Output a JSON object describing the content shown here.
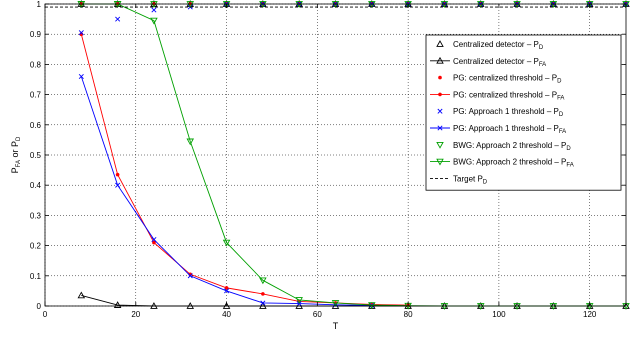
{
  "chart_data": {
    "type": "line",
    "xlabel": "T",
    "ylabel": {
      "main": "P",
      "sub1": "FA",
      "mid": " or P",
      "sub2": "D"
    },
    "xlim": [
      0,
      128
    ],
    "ylim": [
      0,
      1
    ],
    "xticks": [
      "0",
      "20",
      "40",
      "60",
      "80",
      "100",
      "120"
    ],
    "xtick_values": [
      0,
      20,
      40,
      60,
      80,
      100,
      120
    ],
    "yticks": [
      "0",
      "0.1",
      "0.2",
      "0.3",
      "0.4",
      "0.5",
      "0.6",
      "0.7",
      "0.8",
      "0.9",
      "1"
    ],
    "ytick_values": [
      0,
      0.1,
      0.2,
      0.3,
      0.4,
      0.5,
      0.6,
      0.7,
      0.8,
      0.9,
      1
    ],
    "grid": true,
    "legend_position": "right",
    "series": [
      {
        "name": "Centralized detector – P",
        "sub": "D",
        "style": "markers",
        "marker": "triangle-up",
        "color": "#000000",
        "x": [
          8,
          16,
          24,
          32,
          40,
          48,
          56,
          64,
          72,
          80,
          88,
          96,
          104,
          112,
          120,
          128
        ],
        "y": [
          1,
          1,
          1,
          1,
          1,
          1,
          1,
          1,
          1,
          1,
          1,
          1,
          1,
          1,
          1,
          1
        ]
      },
      {
        "name": "Centralized detector – P",
        "sub": "FA",
        "style": "line-markers",
        "marker": "triangle-up",
        "color": "#000000",
        "x": [
          8,
          16,
          24,
          32,
          40,
          48,
          56,
          64,
          72,
          80,
          88,
          96,
          104,
          112,
          120,
          128
        ],
        "y": [
          0.035,
          0.003,
          0,
          0,
          0,
          0,
          0,
          0,
          0,
          0,
          0,
          0,
          0,
          0,
          0,
          0
        ]
      },
      {
        "name": "PG: centralized threshold – P",
        "sub": "D",
        "style": "markers",
        "marker": "dot",
        "color": "#ff0000",
        "x": [
          8,
          16,
          24,
          32,
          40,
          48,
          56,
          64,
          72,
          80,
          88,
          96,
          104,
          112,
          120,
          128
        ],
        "y": [
          1,
          1,
          1,
          1,
          1,
          1,
          1,
          1,
          1,
          1,
          1,
          1,
          1,
          1,
          1,
          1
        ]
      },
      {
        "name": "PG: centralized threshold – P",
        "sub": "FA",
        "style": "line-markers",
        "marker": "dot",
        "color": "#ff0000",
        "x": [
          8,
          16,
          24,
          32,
          40,
          48,
          56,
          64,
          72,
          80
        ],
        "y": [
          0.9,
          0.435,
          0.21,
          0.105,
          0.06,
          0.04,
          0.015,
          0.01,
          0.005,
          0.003
        ]
      },
      {
        "name": "PG: Approach 1 threshold – P",
        "sub": "D",
        "style": "markers",
        "marker": "x",
        "color": "#0000ff",
        "x": [
          8,
          16,
          24,
          32,
          40,
          48,
          56,
          64,
          72,
          80,
          88,
          96,
          104,
          112,
          120,
          128
        ],
        "y": [
          0.905,
          0.95,
          0.98,
          0.99,
          1,
          1,
          1,
          1,
          1,
          1,
          1,
          1,
          1,
          1,
          1,
          1
        ]
      },
      {
        "name": "PG: Approach 1 threshold – P",
        "sub": "FA",
        "style": "line-markers",
        "marker": "x",
        "color": "#0000ff",
        "x": [
          8,
          16,
          24,
          32,
          40,
          48,
          56,
          64,
          72
        ],
        "y": [
          0.76,
          0.4,
          0.22,
          0.1,
          0.05,
          0.01,
          0.008,
          0.004,
          0.002
        ]
      },
      {
        "name": "BWG: Approach 2 threshold – P",
        "sub": "D",
        "style": "markers",
        "marker": "triangle-down",
        "color": "#00a000",
        "x": [
          8,
          16,
          24,
          32,
          40,
          48,
          56,
          64,
          72,
          80,
          88,
          96,
          104,
          112,
          120,
          128
        ],
        "y": [
          1,
          1,
          1,
          1,
          1,
          1,
          1,
          1,
          1,
          1,
          1,
          1,
          1,
          1,
          1,
          1
        ]
      },
      {
        "name": "BWG: Approach 2 threshold – P",
        "sub": "FA",
        "style": "line-markers",
        "marker": "triangle-down",
        "color": "#00a000",
        "x": [
          8,
          16,
          24,
          32,
          40,
          48,
          56,
          64,
          72,
          80,
          88,
          96,
          104,
          112,
          120,
          128
        ],
        "y": [
          1,
          1,
          0.945,
          0.545,
          0.21,
          0.085,
          0.02,
          0.01,
          0.003,
          0.001,
          0,
          0,
          0,
          0,
          0,
          0
        ]
      },
      {
        "name": "Target P",
        "sub": "D",
        "style": "dashed",
        "marker": "none",
        "color": "#000000",
        "x": [
          0,
          128
        ],
        "y": [
          0.99,
          0.99
        ]
      }
    ]
  }
}
